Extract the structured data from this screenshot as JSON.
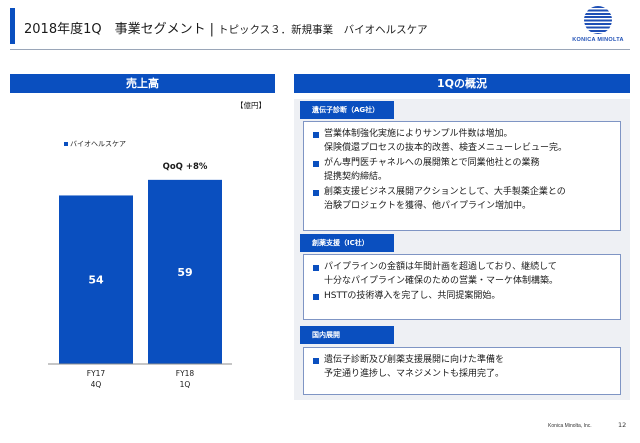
{
  "header": {
    "title": "2018年度1Q　事業セグメント",
    "separator": "|",
    "subtitle": "トピックス３．新規事業　バイオヘルスケア"
  },
  "logo": {
    "icon": "konica-minolta-globe-icon",
    "text": "KONICA MINOLTA"
  },
  "left_panel": {
    "title": "売上高",
    "unit": "【億円】"
  },
  "chart_data": {
    "type": "bar",
    "title": "売上高",
    "unit": "【億円】",
    "categories": [
      "FY17 4Q",
      "FY18 1Q"
    ],
    "category_lines": [
      [
        "FY17",
        "4Q"
      ],
      [
        "FY18",
        "1Q"
      ]
    ],
    "series": [
      {
        "name": "バイオヘルスケア",
        "values": [
          54,
          59
        ],
        "color": "#0a4fbf"
      }
    ],
    "value_labels": [
      "54",
      "59"
    ],
    "annotation": "QoQ +8%",
    "ylim": [
      0,
      66
    ],
    "legend_position": "top-left",
    "grid": false
  },
  "right_panel": {
    "title": "1Qの概況",
    "sections": [
      {
        "label": "遺伝子診断（AG社）",
        "bullets": [
          [
            "営業体制強化実施によりサンプル件数は増加。",
            "保険償還プロセスの抜本的改善、検査メニューレビュー完。"
          ],
          [
            "がん専門医チャネルへの展開策とで同業他社との業務",
            "提携契約締結。"
          ],
          [
            "創薬支援ビジネス展開アクションとして、大手製薬企業との",
            "治験プロジェクトを獲得、他パイプライン増加中。"
          ]
        ]
      },
      {
        "label": "創薬支援（IC社）",
        "bullets": [
          [
            "パイプラインの金額は年間計画を超過しており、継続して",
            "十分なパイプライン確保のための営業・マーケ体制構築。"
          ],
          [
            "HSTTの技術導入を完了し、共同提案開始。"
          ]
        ]
      },
      {
        "label": "国内展開",
        "bullets": [
          [
            "遺伝子診断及び創薬支援展開に向けた準備を",
            "予定通り進捗し、マネジメントも採用完了。"
          ]
        ]
      }
    ]
  },
  "footer": {
    "brand": "Konica Minolta, Inc.",
    "page": "12"
  },
  "colors": {
    "accent": "#0a4fbf",
    "panel_bg": "#eef0f4",
    "box_border": "#7f95c4"
  }
}
